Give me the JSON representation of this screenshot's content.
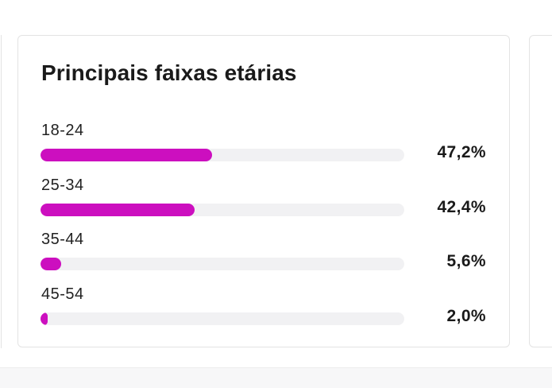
{
  "card": {
    "title": "Principais faixas etárias"
  },
  "age_ranges": [
    {
      "label": "18-24",
      "percent_text": "47,2%",
      "value": 47.2
    },
    {
      "label": "25-34",
      "percent_text": "42,4%",
      "value": 42.4
    },
    {
      "label": "35-44",
      "percent_text": "5,6%",
      "value": 5.6
    },
    {
      "label": "45-54",
      "percent_text": "2,0%",
      "value": 2.0
    }
  ],
  "colors": {
    "bar_fill": "#cc0fbf",
    "bar_track": "#f1f1f3"
  }
}
